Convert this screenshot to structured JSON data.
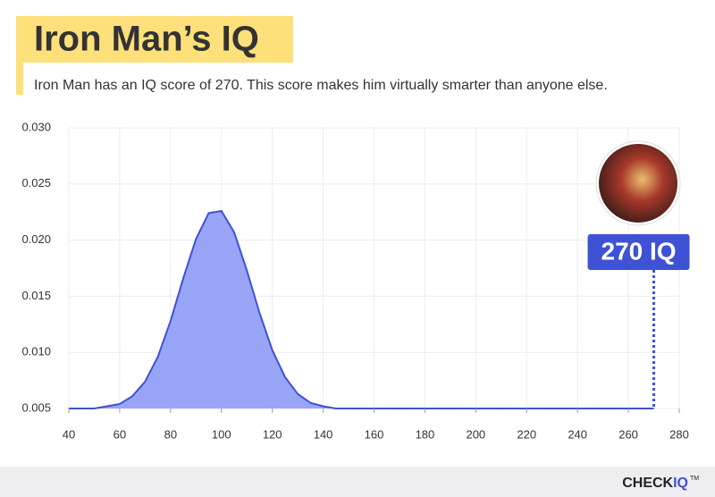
{
  "chart_data": {
    "type": "area",
    "title": "Iron Man’s IQ",
    "subtitle": "Iron Man has an IQ score of 270. This score makes him virtually smarter than anyone else.",
    "x": [
      40,
      45,
      50,
      55,
      60,
      65,
      70,
      75,
      80,
      85,
      90,
      95,
      100,
      105,
      110,
      115,
      120,
      125,
      130,
      135,
      140,
      145,
      150,
      200,
      250,
      270
    ],
    "values": [
      0.005,
      0.005,
      0.005,
      0.0052,
      0.0054,
      0.0061,
      0.0074,
      0.0096,
      0.0128,
      0.0166,
      0.0201,
      0.0224,
      0.0226,
      0.0207,
      0.0173,
      0.0135,
      0.0102,
      0.0078,
      0.0063,
      0.0055,
      0.0052,
      0.005,
      0.005,
      0.005,
      0.005,
      0.005
    ],
    "color": "#3f51d4",
    "fill_color": "#98a5f7",
    "xlim": [
      40,
      280
    ],
    "xticks": [
      40,
      60,
      80,
      100,
      120,
      140,
      160,
      180,
      200,
      220,
      240,
      260,
      280
    ],
    "ylim": [
      0.005,
      0.03
    ],
    "yticks": [
      0.005,
      {
        "value": 0.01,
        "label": "0.010"
      },
      0.015,
      {
        "value": 0.02,
        "label": "0.020"
      },
      0.025,
      {
        "value": 0.03,
        "label": "0.030"
      }
    ],
    "grid": true,
    "annotations": [
      {
        "x": 270,
        "label": "270 IQ"
      }
    ]
  },
  "footer": {
    "brand": "CHECK",
    "brand_accent": "IQ",
    "trademark": "TM"
  }
}
